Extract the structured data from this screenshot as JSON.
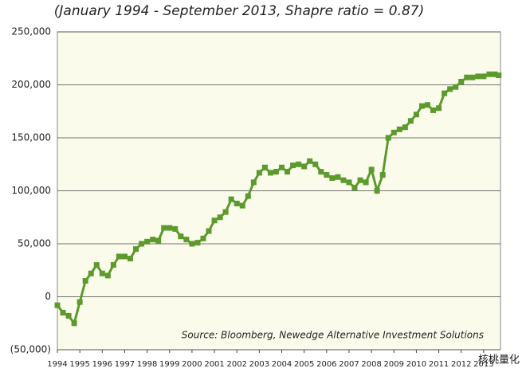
{
  "chart_data": {
    "type": "line",
    "title": "(January 1994 - September 2013, Shapre ratio = 0.87)",
    "annotation": "Source: Bloomberg, Newedge Alternative Investment Solutions",
    "watermark": "核桃量化",
    "x": [
      1994,
      1994.25,
      1994.5,
      1994.75,
      1995,
      1995.25,
      1995.5,
      1995.75,
      1996,
      1996.25,
      1996.5,
      1996.75,
      1997,
      1997.25,
      1997.5,
      1997.75,
      1998,
      1998.25,
      1998.5,
      1998.75,
      1999,
      1999.25,
      1999.5,
      1999.75,
      2000,
      2000.25,
      2000.5,
      2000.75,
      2001,
      2001.25,
      2001.5,
      2001.75,
      2002,
      2002.25,
      2002.5,
      2002.75,
      2003,
      2003.25,
      2003.5,
      2003.75,
      2004,
      2004.25,
      2004.5,
      2004.75,
      2005,
      2005.25,
      2005.5,
      2005.75,
      2006,
      2006.25,
      2006.5,
      2006.75,
      2007,
      2007.25,
      2007.5,
      2007.75,
      2008,
      2008.25,
      2008.5,
      2008.75,
      2009,
      2009.25,
      2009.5,
      2009.75,
      2010,
      2010.25,
      2010.5,
      2010.75,
      2011,
      2011.25,
      2011.5,
      2011.75,
      2012,
      2012.25,
      2012.5,
      2012.75,
      2013,
      2013.25,
      2013.5,
      2013.67
    ],
    "series": [
      {
        "color": "#5c9a2c",
        "values": [
          -8000,
          -15000,
          -18000,
          -25000,
          -5000,
          15000,
          22000,
          30000,
          22000,
          20000,
          30000,
          38000,
          38000,
          36000,
          45000,
          50000,
          52000,
          54000,
          53000,
          65000,
          65000,
          64000,
          57000,
          54000,
          50000,
          51000,
          55000,
          62000,
          72000,
          75000,
          80000,
          92000,
          88000,
          86000,
          95000,
          108000,
          117000,
          122000,
          117000,
          118000,
          122000,
          118000,
          124000,
          125000,
          123000,
          128000,
          125000,
          118000,
          115000,
          112000,
          113000,
          110000,
          108000,
          103000,
          110000,
          108000,
          120000,
          100000,
          115000,
          150000,
          155000,
          158000,
          160000,
          166000,
          172000,
          180000,
          181000,
          176000,
          178000,
          192000,
          196000,
          198000,
          203000,
          207000,
          207000,
          208000,
          208000,
          210000,
          210000,
          209000
        ]
      }
    ],
    "xlim": [
      1994,
      2013.75
    ],
    "xticks": [
      1994,
      1995,
      1996,
      1997,
      1998,
      1999,
      2000,
      2001,
      2002,
      2003,
      2004,
      2005,
      2006,
      2007,
      2008,
      2009,
      2010,
      2011,
      2012,
      2013
    ],
    "ylim": [
      -50000,
      250000
    ],
    "yticks": [
      {
        "value": -50000,
        "label": "(50,000)"
      },
      0,
      {
        "value": 50000,
        "label": "50,000"
      },
      {
        "value": 100000,
        "label": "100,000"
      },
      {
        "value": 150000,
        "label": "150,000"
      },
      {
        "value": 200000,
        "label": "200,000"
      },
      {
        "value": 250000,
        "label": "250,000"
      }
    ],
    "grid": true
  }
}
